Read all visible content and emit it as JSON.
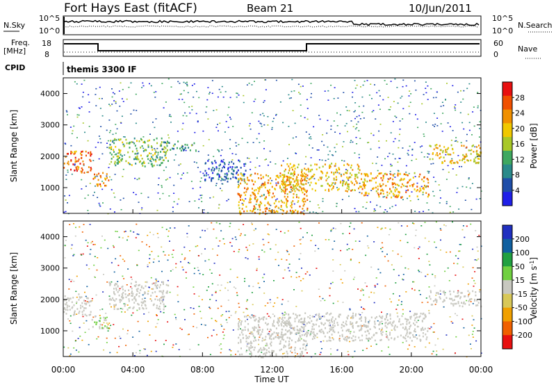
{
  "header": {
    "station": "Fort Hays East (fitACF)",
    "beam": "Beam 21",
    "date": "10/Jun/2011"
  },
  "noise_panel": {
    "left_label": "N.Sky",
    "right_label": "N.Search",
    "left_ticks": [
      "10^5",
      "10^0"
    ],
    "right_ticks": [
      "10^5",
      "10^0"
    ]
  },
  "freq_panel": {
    "left_label_1": "Freq.",
    "left_label_2": "[MHz]",
    "right_label": "Nave",
    "left_ticks": [
      "18",
      "8"
    ],
    "right_ticks": [
      "60",
      "0"
    ]
  },
  "cpid": {
    "label": "CPID",
    "value": "themis 3300 IF"
  },
  "x_axis": {
    "label": "Time UT",
    "ticks": [
      "00:00",
      "04:00",
      "08:00",
      "12:00",
      "16:00",
      "20:00",
      "00:00"
    ]
  },
  "colors": {
    "power_scale": [
      "#1f1fe8",
      "#1f4ea8",
      "#2a8a8a",
      "#3fa860",
      "#a8c828",
      "#f0c800",
      "#f09000",
      "#f05000",
      "#e81010"
    ],
    "velocity_scale": [
      "#2030c0",
      "#1060a0",
      "#20a040",
      "#70d040",
      "#c8c8c0",
      "#d8c858",
      "#f0a000",
      "#f06000",
      "#e81010"
    ]
  },
  "chart_data": [
    {
      "type": "heatmap",
      "title": "",
      "xlabel": "Time UT",
      "ylabel": "Slant Range [km]",
      "xlim": [
        0,
        24
      ],
      "ylim": [
        180,
        4500
      ],
      "yticks": [
        1000,
        2000,
        3000,
        4000
      ],
      "colorbar_label": "Power [dB]",
      "colorbar_ticks": [
        4,
        8,
        12,
        16,
        20,
        24,
        28
      ],
      "colorbar_range": [
        0,
        32
      ],
      "bands": [
        {
          "start": 0.0,
          "end": 1.6,
          "lo": 1500,
          "hi": 2200,
          "value": 26
        },
        {
          "start": 1.6,
          "end": 2.6,
          "lo": 1050,
          "hi": 1500,
          "value": 24
        },
        {
          "start": 2.6,
          "end": 6.0,
          "lo": 1700,
          "hi": 2600,
          "value": 14
        },
        {
          "start": 5.5,
          "end": 7.5,
          "lo": 2200,
          "hi": 2500,
          "value": 10
        },
        {
          "start": 8.0,
          "end": 10.5,
          "lo": 1200,
          "hi": 1900,
          "value": 6
        },
        {
          "start": 10.0,
          "end": 14.0,
          "lo": 180,
          "hi": 1500,
          "value": 22
        },
        {
          "start": 12.5,
          "end": 17.0,
          "lo": 900,
          "hi": 1800,
          "value": 20
        },
        {
          "start": 17.0,
          "end": 21.0,
          "lo": 700,
          "hi": 1500,
          "value": 22
        },
        {
          "start": 21.0,
          "end": 24.0,
          "lo": 1800,
          "hi": 2400,
          "value": 20
        }
      ]
    },
    {
      "type": "heatmap",
      "title": "",
      "xlabel": "Time UT",
      "ylabel": "Slant Range [km]",
      "xlim": [
        0,
        24
      ],
      "ylim": [
        180,
        4500
      ],
      "yticks": [
        1000,
        2000,
        3000,
        4000
      ],
      "colorbar_label": "Velocity [m s^-1]",
      "colorbar_ticks": [
        200,
        100,
        50,
        15,
        -15,
        -50,
        -100,
        -200
      ],
      "colorbar_range": [
        -250,
        250
      ],
      "bands": [
        {
          "start": 0.0,
          "end": 1.6,
          "lo": 1500,
          "hi": 2200,
          "value": 0
        },
        {
          "start": 1.6,
          "end": 2.6,
          "lo": 1100,
          "hi": 1500,
          "value": 30
        },
        {
          "start": 2.6,
          "end": 6.0,
          "lo": 1700,
          "hi": 2600,
          "value": 0
        },
        {
          "start": 10.0,
          "end": 14.0,
          "lo": 180,
          "hi": 1500,
          "value": -5
        },
        {
          "start": 12.5,
          "end": 21.0,
          "lo": 700,
          "hi": 1600,
          "value": 0
        },
        {
          "start": 21.0,
          "end": 24.0,
          "lo": 1800,
          "hi": 2300,
          "value": 0
        }
      ]
    }
  ]
}
